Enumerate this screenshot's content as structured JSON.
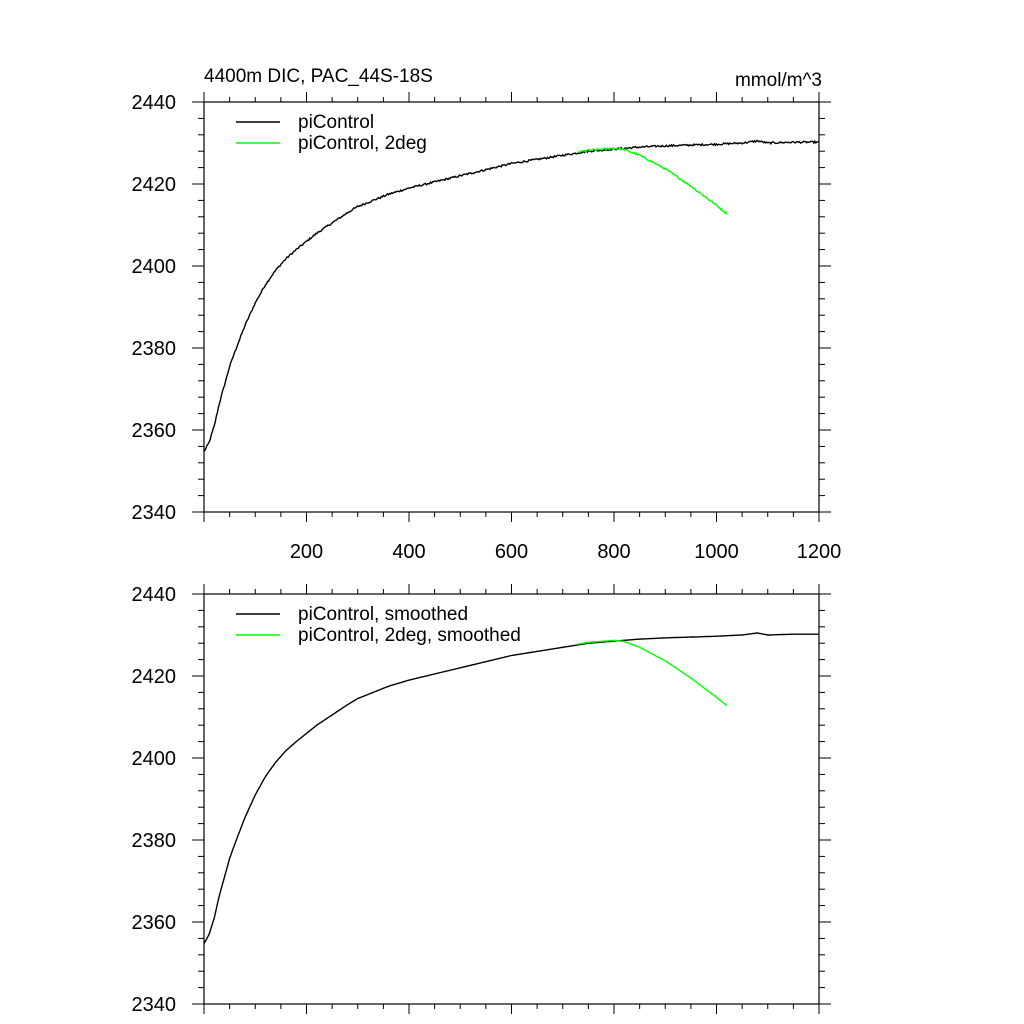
{
  "figure": {
    "title_left": "4400m DIC, PAC_44S-18S",
    "title_right": "mmol/m^3"
  },
  "colors": {
    "series_1": "#000000",
    "series_2": "#00ff00",
    "axes": "#000000"
  },
  "chart_data": [
    {
      "type": "line",
      "title": "4400m DIC, PAC_44S-18S",
      "units": "mmol/m^3",
      "xlim": [
        0,
        1200
      ],
      "ylim": [
        2340,
        2440
      ],
      "x_tick_labels": [
        "200",
        "400",
        "600",
        "800",
        "1000",
        "1200"
      ],
      "y_tick_labels": [
        "2340",
        "2360",
        "2380",
        "2400",
        "2420",
        "2440"
      ],
      "grid": false,
      "legend_position": "top-left",
      "series": [
        {
          "name": "piControl",
          "color": "#000000",
          "noisy": true,
          "x": [
            0,
            10,
            20,
            30,
            40,
            50,
            60,
            80,
            100,
            120,
            140,
            160,
            180,
            200,
            220,
            250,
            280,
            300,
            340,
            360,
            400,
            450,
            500,
            550,
            600,
            650,
            700,
            750,
            800,
            850,
            900,
            950,
            1000,
            1050,
            1080,
            1100,
            1150,
            1200
          ],
          "y": [
            2354.7,
            2357,
            2361,
            2366.5,
            2371,
            2375.5,
            2379,
            2385.5,
            2391,
            2395.5,
            2399,
            2401.8,
            2404,
            2406,
            2408,
            2410.5,
            2413,
            2414.5,
            2416.5,
            2417.5,
            2419,
            2420.5,
            2422,
            2423.5,
            2425,
            2426,
            2427,
            2428,
            2428.5,
            2429,
            2429.3,
            2429.5,
            2429.7,
            2430,
            2430.5,
            2430,
            2430.2,
            2430.2
          ]
        },
        {
          "name": "piControl, 2deg",
          "color": "#00ff00",
          "noisy": true,
          "x": [
            730,
            750,
            800,
            820,
            850,
            900,
            950,
            1000,
            1020
          ],
          "y": [
            2427.8,
            2428.2,
            2428.7,
            2428.4,
            2427,
            2423.7,
            2419.5,
            2414.8,
            2412.8
          ]
        }
      ]
    },
    {
      "type": "line",
      "xlim": [
        0,
        1200
      ],
      "ylim": [
        2340,
        2440
      ],
      "y_tick_labels": [
        "2340",
        "2360",
        "2380",
        "2400",
        "2420",
        "2440"
      ],
      "grid": false,
      "legend_position": "top-left",
      "series": [
        {
          "name": "piControl, smoothed",
          "color": "#000000",
          "noisy": false,
          "x": [
            0,
            10,
            20,
            30,
            40,
            50,
            60,
            80,
            100,
            120,
            140,
            160,
            180,
            200,
            220,
            250,
            280,
            300,
            340,
            360,
            400,
            450,
            500,
            550,
            600,
            650,
            700,
            750,
            800,
            850,
            900,
            950,
            1000,
            1050,
            1080,
            1100,
            1150,
            1200
          ],
          "y": [
            2354.7,
            2357,
            2361,
            2366.5,
            2371,
            2375.5,
            2379,
            2385.5,
            2391,
            2395.5,
            2399,
            2401.8,
            2404,
            2406,
            2408,
            2410.5,
            2413,
            2414.5,
            2416.5,
            2417.5,
            2419,
            2420.5,
            2422,
            2423.5,
            2425,
            2426,
            2427,
            2428,
            2428.5,
            2429,
            2429.3,
            2429.5,
            2429.7,
            2430,
            2430.5,
            2430,
            2430.2,
            2430.2
          ]
        },
        {
          "name": "piControl, 2deg, smoothed",
          "color": "#00ff00",
          "noisy": false,
          "x": [
            730,
            750,
            800,
            820,
            850,
            900,
            950,
            1000,
            1020
          ],
          "y": [
            2427.8,
            2428.2,
            2428.7,
            2428.4,
            2427,
            2423.7,
            2419.5,
            2414.8,
            2412.8
          ]
        }
      ]
    }
  ]
}
